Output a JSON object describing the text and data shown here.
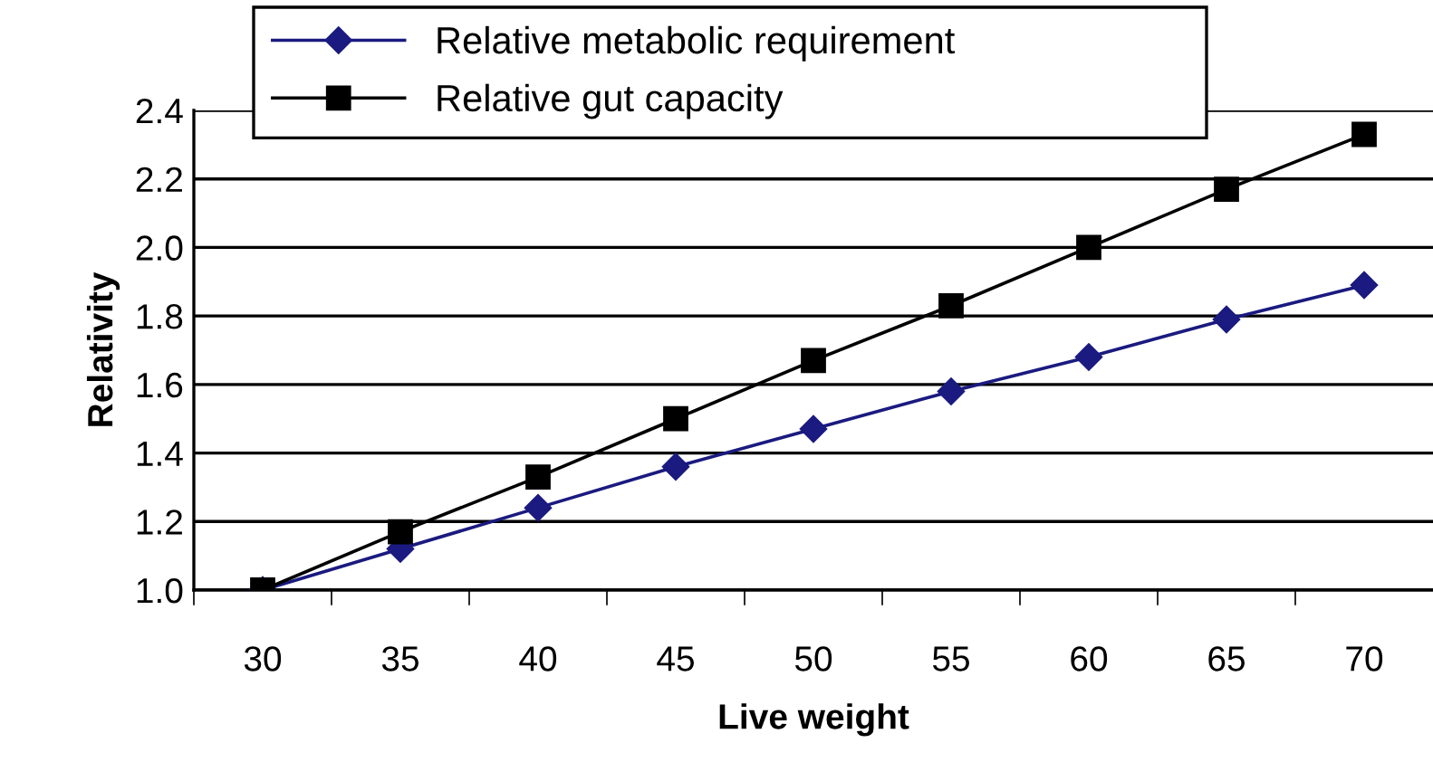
{
  "chart_data": {
    "type": "line",
    "xlabel": "Live weight",
    "ylabel": "Relativity",
    "categories": [
      "30",
      "35",
      "40",
      "45",
      "50",
      "55",
      "60",
      "65",
      "70"
    ],
    "series": [
      {
        "name": "Relative metabolic requirement",
        "color": "#1a1a80",
        "marker": "diamond",
        "values": [
          1.0,
          1.12,
          1.24,
          1.36,
          1.47,
          1.58,
          1.68,
          1.79,
          1.89
        ]
      },
      {
        "name": "Relative gut capacity",
        "color": "#000000",
        "marker": "square",
        "values": [
          1.0,
          1.17,
          1.33,
          1.5,
          1.67,
          1.83,
          2.0,
          2.17,
          2.33
        ]
      }
    ],
    "ylim": [
      1.0,
      2.4
    ],
    "yticks": [
      {
        "value": 1.0,
        "label": "1.0"
      },
      {
        "value": 1.2,
        "label": "1.2"
      },
      {
        "value": 1.4,
        "label": "1.4"
      },
      {
        "value": 1.6,
        "label": "1.6"
      },
      {
        "value": 1.8,
        "label": "1.8"
      },
      {
        "value": 2.0,
        "label": "2.0"
      },
      {
        "value": 2.2,
        "label": "2.2"
      },
      {
        "value": 2.4,
        "label": "2.4"
      }
    ],
    "grid": "y",
    "legend": "top left",
    "line_style": "solid"
  }
}
